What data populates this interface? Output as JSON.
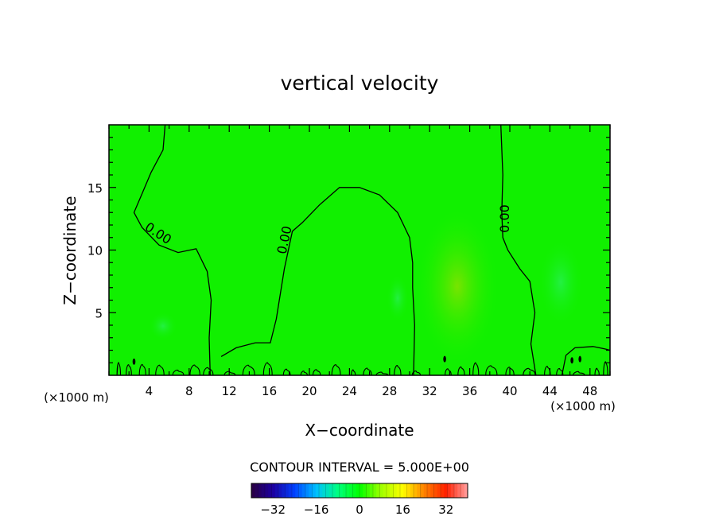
{
  "chart_data": {
    "type": "contour",
    "title": "vertical velocity",
    "xlabel": "X−coordinate",
    "ylabel": "Z−coordinate",
    "x_unit": "(×1000 m)",
    "y_unit": "(×1000 m)",
    "xlim": [
      0,
      50
    ],
    "ylim": [
      0,
      20
    ],
    "x_ticks": [
      4,
      8,
      12,
      16,
      20,
      24,
      28,
      32,
      36,
      40,
      44,
      48
    ],
    "y_ticks": [
      5,
      10,
      15
    ],
    "contour_label": "0.00",
    "contour_interval_text": "CONTOUR INTERVAL = 5.000E+00",
    "colorbar": {
      "range": [
        -40,
        40
      ],
      "ticks": [
        -32,
        -16,
        0,
        16,
        32
      ],
      "colors": [
        "#2a0040",
        "#1c00a0",
        "#0040ff",
        "#00c0ff",
        "#00ff80",
        "#00ff00",
        "#a0ff00",
        "#ffff00",
        "#ff8000",
        "#ff2000",
        "#ffa0a0"
      ]
    },
    "zero_contours": [
      {
        "name": "left",
        "points": [
          [
            5.6,
            20
          ],
          [
            5.4,
            18
          ],
          [
            4.2,
            16.2
          ],
          [
            3.3,
            14.5
          ],
          [
            2.5,
            13
          ],
          [
            3.3,
            11.8
          ],
          [
            5.0,
            10.4
          ],
          [
            6.9,
            9.8
          ],
          [
            8.7,
            10.1
          ],
          [
            9.8,
            8.3
          ],
          [
            10.2,
            6.0
          ],
          [
            10.0,
            3.0
          ],
          [
            10.1,
            0
          ]
        ]
      },
      {
        "name": "center",
        "points": [
          [
            11.2,
            1.5
          ],
          [
            12.7,
            2.2
          ],
          [
            14.6,
            2.6
          ],
          [
            16.1,
            2.6
          ],
          [
            16.7,
            4.5
          ],
          [
            17.5,
            8.5
          ],
          [
            18.3,
            11.5
          ],
          [
            19.3,
            12.2
          ],
          [
            21.0,
            13.6
          ],
          [
            23.0,
            15.0
          ],
          [
            25.0,
            15.0
          ],
          [
            27.0,
            14.4
          ],
          [
            28.8,
            13.0
          ],
          [
            30.0,
            11.0
          ],
          [
            30.3,
            9.0
          ],
          [
            30.3,
            7.0
          ],
          [
            30.5,
            4.0
          ],
          [
            30.4,
            0
          ]
        ]
      },
      {
        "name": "right",
        "points": [
          [
            39.1,
            20
          ],
          [
            39.3,
            16.0
          ],
          [
            39.2,
            13.0
          ],
          [
            39.3,
            11.0
          ],
          [
            39.8,
            10.0
          ],
          [
            41.0,
            8.5
          ],
          [
            42.0,
            7.5
          ],
          [
            42.5,
            5.0
          ],
          [
            42.1,
            2.5
          ],
          [
            42.6,
            0
          ]
        ]
      },
      {
        "name": "right-bump",
        "points": [
          [
            45.2,
            0
          ],
          [
            45.6,
            1.6
          ],
          [
            46.5,
            2.2
          ],
          [
            48.3,
            2.3
          ],
          [
            49.5,
            2.1
          ],
          [
            50,
            2.0
          ]
        ]
      }
    ]
  }
}
